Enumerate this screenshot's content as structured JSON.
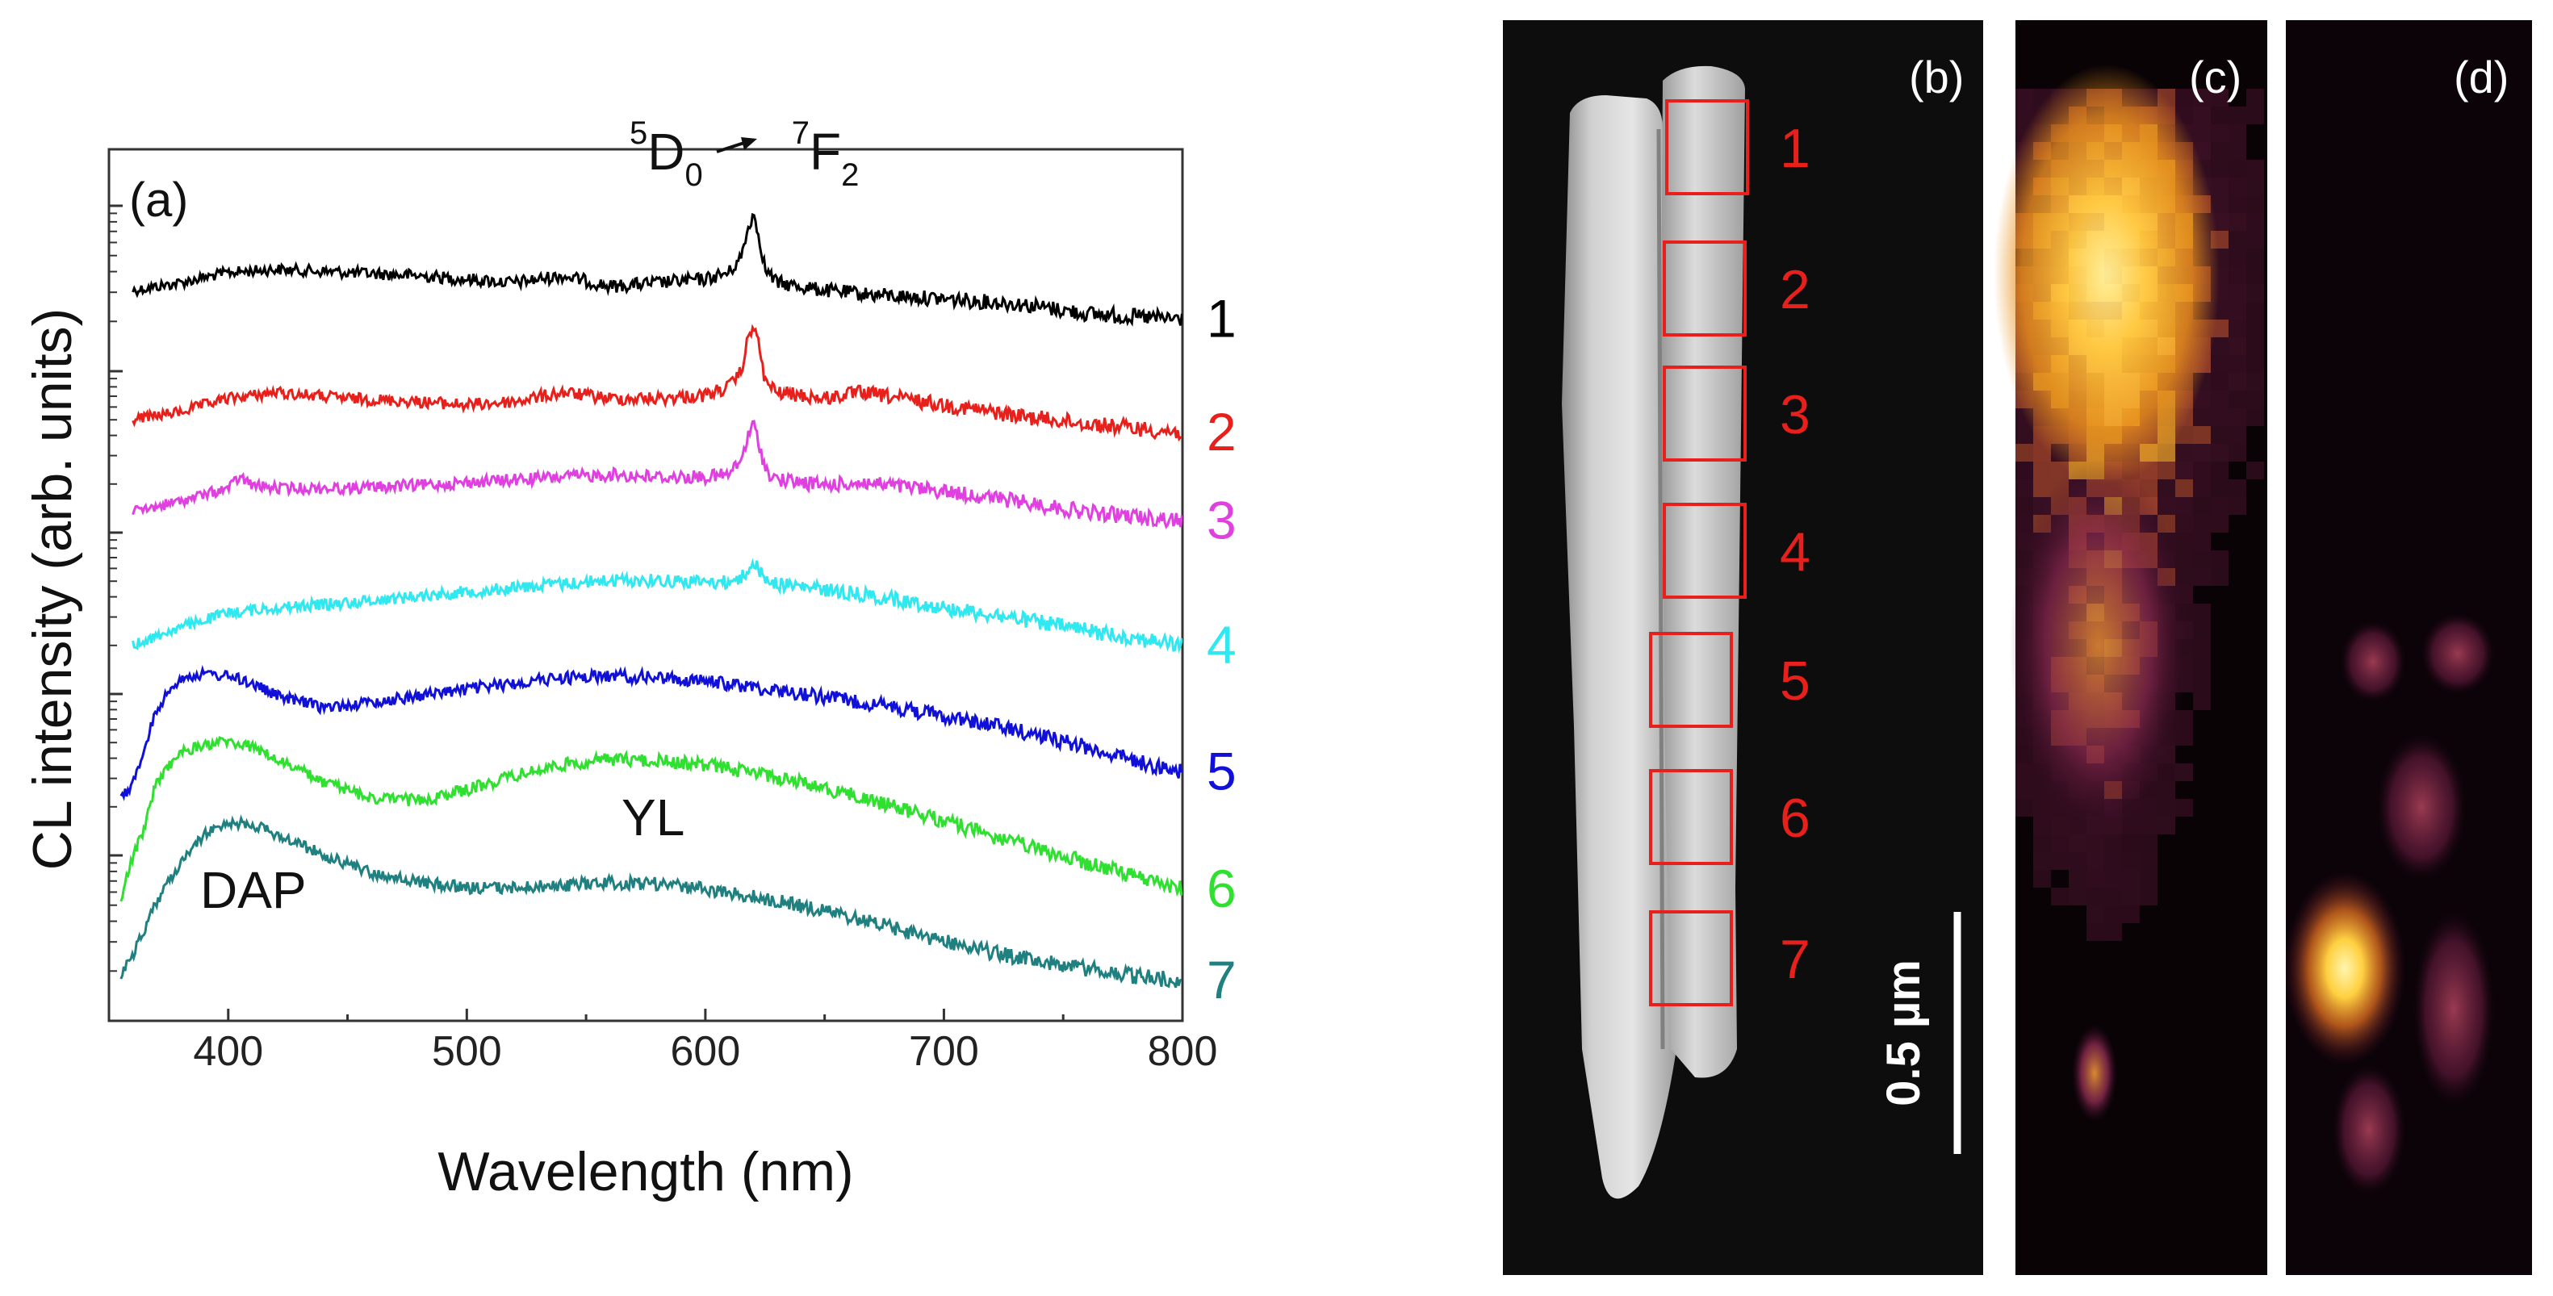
{
  "chart_data": [
    {
      "type": "line",
      "panel_label": "(a)",
      "xlabel": "Wavelength (nm)",
      "ylabel": "CL intensity (arb. units)",
      "xlim": [
        350,
        800
      ],
      "xticks": [
        400,
        500,
        600,
        700,
        800
      ],
      "y_scale": "log",
      "y_ticklabels_shown": false,
      "grid": false,
      "series": [
        {
          "name": "1",
          "color": "#000000",
          "values_x": [
            360,
            380,
            400,
            420,
            450,
            480,
            500,
            520,
            540,
            560,
            580,
            600,
            610,
            615,
            620,
            625,
            630,
            650,
            670,
            700,
            730,
            760,
            780,
            800
          ],
          "values_y": [
            1.0,
            1.1,
            1.25,
            1.3,
            1.25,
            1.2,
            1.15,
            1.1,
            1.2,
            1.05,
            1.1,
            1.15,
            1.25,
            1.5,
            2.6,
            1.3,
            1.1,
            1.0,
            0.95,
            0.9,
            0.85,
            0.75,
            0.72,
            0.7
          ]
        },
        {
          "name": "2",
          "color": "#e8201c",
          "values_x": [
            360,
            380,
            400,
            420,
            450,
            480,
            500,
            520,
            540,
            560,
            580,
            600,
            610,
            615,
            620,
            625,
            630,
            650,
            665,
            700,
            730,
            760,
            780,
            800
          ],
          "values_y": [
            1.0,
            1.1,
            1.3,
            1.4,
            1.3,
            1.25,
            1.2,
            1.25,
            1.4,
            1.3,
            1.3,
            1.35,
            1.5,
            1.8,
            3.3,
            1.6,
            1.4,
            1.3,
            1.4,
            1.2,
            1.05,
            0.95,
            0.9,
            0.85
          ]
        },
        {
          "name": "3",
          "color": "#e040e0",
          "values_x": [
            360,
            380,
            400,
            405,
            410,
            420,
            450,
            480,
            500,
            520,
            540,
            560,
            580,
            600,
            610,
            615,
            620,
            625,
            630,
            650,
            665,
            700,
            730,
            760,
            780,
            800
          ],
          "values_y": [
            1.0,
            1.15,
            1.35,
            1.55,
            1.4,
            1.35,
            1.35,
            1.4,
            1.45,
            1.5,
            1.55,
            1.6,
            1.55,
            1.55,
            1.6,
            1.9,
            3.0,
            1.7,
            1.5,
            1.4,
            1.45,
            1.3,
            1.15,
            1.0,
            0.95,
            0.9
          ]
        },
        {
          "name": "4",
          "color": "#30e8f0",
          "values_x": [
            360,
            380,
            400,
            420,
            450,
            480,
            500,
            520,
            540,
            560,
            580,
            600,
            610,
            615,
            620,
            625,
            630,
            650,
            670,
            700,
            730,
            760,
            780,
            800
          ],
          "values_y": [
            1.0,
            1.25,
            1.5,
            1.6,
            1.7,
            1.85,
            1.95,
            2.05,
            2.15,
            2.25,
            2.25,
            2.2,
            2.2,
            2.3,
            2.8,
            2.3,
            2.15,
            2.0,
            1.85,
            1.6,
            1.4,
            1.2,
            1.1,
            1.0
          ]
        },
        {
          "name": "5",
          "color": "#1010d8",
          "values_x": [
            355,
            360,
            365,
            370,
            380,
            390,
            400,
            410,
            420,
            440,
            460,
            480,
            500,
            520,
            540,
            560,
            580,
            600,
            620,
            640,
            660,
            680,
            700,
            720,
            740,
            760,
            780,
            800
          ],
          "values_y": [
            1.0,
            1.2,
            1.8,
            3.0,
            4.5,
            4.7,
            4.6,
            4.2,
            3.6,
            3.1,
            3.3,
            3.6,
            3.9,
            4.2,
            4.5,
            4.6,
            4.5,
            4.3,
            4.0,
            3.7,
            3.4,
            3.1,
            2.8,
            2.5,
            2.2,
            1.9,
            1.6,
            1.4
          ]
        },
        {
          "name": "6",
          "color": "#30e030",
          "values_x": [
            355,
            360,
            365,
            370,
            380,
            390,
            400,
            410,
            420,
            440,
            460,
            480,
            500,
            520,
            540,
            560,
            580,
            600,
            620,
            640,
            660,
            680,
            700,
            720,
            740,
            760,
            780,
            800
          ],
          "values_y": [
            1.0,
            1.8,
            2.5,
            4.5,
            6.5,
            7.2,
            7.5,
            7.0,
            6.0,
            4.5,
            3.7,
            3.6,
            4.1,
            4.9,
            5.6,
            6.0,
            5.9,
            5.6,
            5.1,
            4.5,
            3.9,
            3.3,
            2.8,
            2.3,
            1.95,
            1.65,
            1.4,
            1.2
          ]
        },
        {
          "name": "7",
          "color": "#208080",
          "values_x": [
            355,
            360,
            365,
            370,
            380,
            390,
            400,
            410,
            420,
            440,
            460,
            480,
            500,
            520,
            540,
            560,
            580,
            600,
            620,
            640,
            660,
            680,
            700,
            720,
            740,
            760,
            780,
            800
          ],
          "values_y": [
            1.0,
            1.3,
            1.8,
            2.5,
            4.0,
            5.8,
            6.8,
            6.6,
            5.8,
            4.5,
            3.6,
            3.2,
            3.0,
            3.0,
            3.1,
            3.2,
            3.15,
            2.95,
            2.7,
            2.4,
            2.1,
            1.8,
            1.55,
            1.35,
            1.2,
            1.1,
            1.0,
            0.95
          ]
        }
      ],
      "annotations": {
        "transition": {
          "s1": "5",
          "l1": "D",
          "s2": "0",
          "s3": "7",
          "l2": "F",
          "s4": "2"
        },
        "dap": "DAP",
        "yl": "YL"
      }
    }
  ],
  "images": {
    "b": {
      "label": "(b)",
      "roi_labels": [
        "1",
        "2",
        "3",
        "4",
        "5",
        "6",
        "7"
      ],
      "scalebar_label": "0.5 µm"
    },
    "c": {
      "label": "(c)"
    },
    "d": {
      "label": "(d)"
    }
  },
  "colors": {
    "roi": "#e8201c",
    "colormap": "afmhot-like"
  }
}
